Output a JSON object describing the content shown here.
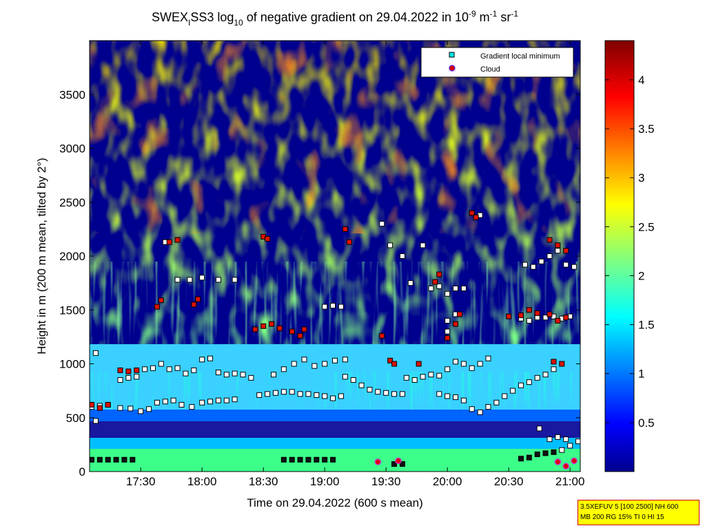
{
  "title": {
    "prefix": "SWEX",
    "sub1": "I",
    "mid": "SS3 log",
    "sub2": "10",
    "rest": " of negative gradient on 29.04.2022 in 10",
    "sup1": "-9",
    "unit1": " m",
    "sup2": "-1",
    "unit2": " sr",
    "sup3": "-1"
  },
  "xlabel": "Time on 29.04.2022 (600 s mean)",
  "ylabel": "Height in m (200 m mean, tilted by 2°)",
  "legend": {
    "items": [
      {
        "label": "Gradient local minimum",
        "color": "#00e5e5",
        "edge": "#000000"
      },
      {
        "label": "Cloud",
        "color": "#dd0000",
        "edge": "#6633cc"
      }
    ]
  },
  "info_box": {
    "line1": "3.5XEFUV 5 [100 2500] NH 600",
    "line2": "MB 200 RG 15% TI 0 HI 15"
  },
  "colorbar": {
    "ticks": [
      "0.5",
      "1",
      "1.5",
      "2",
      "2.5",
      "3",
      "3.5",
      "4"
    ],
    "range": [
      0,
      4.4
    ],
    "colormap": "jet"
  },
  "chart_data": {
    "type": "heatmap",
    "x_axis": {
      "range_minutes": [
        1025,
        1265
      ],
      "tick_labels": [
        "17:30",
        "18:00",
        "18:30",
        "19:00",
        "19:30",
        "20:00",
        "20:30",
        "21:00"
      ],
      "tick_minutes": [
        1050,
        1080,
        1110,
        1140,
        1170,
        1200,
        1230,
        1260
      ]
    },
    "y_axis": {
      "range": [
        0,
        4000
      ],
      "tick_labels": [
        "0",
        "500",
        "1000",
        "1500",
        "2000",
        "2500",
        "3000",
        "3500"
      ],
      "tick_values": [
        0,
        500,
        1000,
        1500,
        2000,
        2500,
        3000,
        3500
      ]
    },
    "layers": [
      {
        "height_range": [
          0,
          150
        ],
        "value": 2.0,
        "description": "near-surface green band"
      },
      {
        "height_range": [
          150,
          300
        ],
        "value": 0.3
      },
      {
        "height_range": [
          300,
          500
        ],
        "value": 1.0
      },
      {
        "height_range": [
          500,
          1000
        ],
        "value": 1.6
      },
      {
        "height_range": [
          1000,
          2600
        ],
        "value": 2.3,
        "pattern": "patchy"
      },
      {
        "height_range": [
          2600,
          4000
        ],
        "value": 2.8,
        "pattern": "patchy"
      }
    ],
    "series": [
      {
        "name": "Gradient local minimum",
        "points": [
          [
            1026,
            110
          ],
          [
            1030,
            110
          ],
          [
            1034,
            110
          ],
          [
            1038,
            110
          ],
          [
            1042,
            110
          ],
          [
            1046,
            110
          ],
          [
            1026,
            600
          ],
          [
            1030,
            610
          ],
          [
            1034,
            620
          ],
          [
            1040,
            590
          ],
          [
            1045,
            585
          ],
          [
            1050,
            560
          ],
          [
            1054,
            580
          ],
          [
            1058,
            640
          ],
          [
            1062,
            650
          ],
          [
            1066,
            660
          ],
          [
            1070,
            620
          ],
          [
            1075,
            600
          ],
          [
            1080,
            640
          ],
          [
            1084,
            650
          ],
          [
            1088,
            660
          ],
          [
            1092,
            660
          ],
          [
            1096,
            670
          ],
          [
            1040,
            850
          ],
          [
            1044,
            870
          ],
          [
            1048,
            880
          ],
          [
            1052,
            950
          ],
          [
            1056,
            960
          ],
          [
            1060,
            1000
          ],
          [
            1064,
            950
          ],
          [
            1068,
            960
          ],
          [
            1072,
            910
          ],
          [
            1076,
            940
          ],
          [
            1080,
            1040
          ],
          [
            1084,
            1050
          ],
          [
            1088,
            920
          ],
          [
            1092,
            900
          ],
          [
            1096,
            910
          ],
          [
            1100,
            900
          ],
          [
            1104,
            870
          ],
          [
            1108,
            710
          ],
          [
            1112,
            720
          ],
          [
            1116,
            730
          ],
          [
            1120,
            740
          ],
          [
            1124,
            740
          ],
          [
            1128,
            720
          ],
          [
            1132,
            720
          ],
          [
            1136,
            710
          ],
          [
            1140,
            700
          ],
          [
            1144,
            680
          ],
          [
            1148,
            700
          ],
          [
            1115,
            900
          ],
          [
            1120,
            950
          ],
          [
            1125,
            1000
          ],
          [
            1130,
            1040
          ],
          [
            1135,
            980
          ],
          [
            1140,
            1000
          ],
          [
            1145,
            1030
          ],
          [
            1150,
            1040
          ],
          [
            1150,
            880
          ],
          [
            1154,
            850
          ],
          [
            1158,
            800
          ],
          [
            1162,
            760
          ],
          [
            1166,
            740
          ],
          [
            1170,
            730
          ],
          [
            1174,
            720
          ],
          [
            1178,
            720
          ],
          [
            1120,
            110
          ],
          [
            1124,
            110
          ],
          [
            1128,
            110
          ],
          [
            1132,
            110
          ],
          [
            1136,
            110
          ],
          [
            1140,
            110
          ],
          [
            1144,
            110
          ],
          [
            1174,
            70
          ],
          [
            1178,
            70
          ],
          [
            1180,
            870
          ],
          [
            1184,
            850
          ],
          [
            1188,
            880
          ],
          [
            1192,
            900
          ],
          [
            1196,
            890
          ],
          [
            1200,
            950
          ],
          [
            1204,
            1020
          ],
          [
            1208,
            1000
          ],
          [
            1212,
            960
          ],
          [
            1216,
            1000
          ],
          [
            1220,
            1050
          ],
          [
            1196,
            720
          ],
          [
            1200,
            700
          ],
          [
            1204,
            690
          ],
          [
            1208,
            660
          ],
          [
            1212,
            580
          ],
          [
            1216,
            550
          ],
          [
            1220,
            600
          ],
          [
            1224,
            640
          ],
          [
            1228,
            700
          ],
          [
            1232,
            750
          ],
          [
            1236,
            800
          ],
          [
            1240,
            830
          ],
          [
            1244,
            870
          ],
          [
            1248,
            900
          ],
          [
            1252,
            950
          ],
          [
            1236,
            120
          ],
          [
            1240,
            130
          ],
          [
            1244,
            160
          ],
          [
            1248,
            170
          ],
          [
            1252,
            180
          ],
          [
            1256,
            200
          ],
          [
            1260,
            240
          ],
          [
            1264,
            280
          ],
          [
            1245,
            400
          ],
          [
            1250,
            300
          ],
          [
            1254,
            320
          ],
          [
            1258,
            300
          ],
          [
            1140,
            1530
          ],
          [
            1144,
            1540
          ],
          [
            1148,
            1530
          ],
          [
            1168,
            2300
          ],
          [
            1172,
            2100
          ],
          [
            1178,
            2000
          ],
          [
            1182,
            1750
          ],
          [
            1188,
            2100
          ],
          [
            1192,
            1700
          ],
          [
            1196,
            1720
          ],
          [
            1200,
            1650
          ],
          [
            1204,
            1700
          ],
          [
            1208,
            1700
          ],
          [
            1212,
            2400
          ],
          [
            1216,
            2380
          ],
          [
            1062,
            2130
          ],
          [
            1068,
            1780
          ],
          [
            1074,
            1780
          ],
          [
            1080,
            1800
          ],
          [
            1088,
            1780
          ],
          [
            1096,
            1780
          ],
          [
            1028,
            1100
          ],
          [
            1028,
            470
          ],
          [
            1200,
            1300
          ],
          [
            1200,
            1400
          ],
          [
            1204,
            1460
          ],
          [
            1238,
            1920
          ],
          [
            1242,
            1900
          ],
          [
            1246,
            1950
          ],
          [
            1250,
            2000
          ],
          [
            1254,
            2050
          ],
          [
            1258,
            1920
          ],
          [
            1262,
            1900
          ],
          [
            1236,
            1420
          ],
          [
            1240,
            1400
          ],
          [
            1244,
            1430
          ],
          [
            1248,
            1430
          ],
          [
            1252,
            1440
          ],
          [
            1256,
            1420
          ],
          [
            1260,
            1440
          ]
        ]
      },
      {
        "name": "Cloud",
        "points": [
          [
            1026,
            620
          ],
          [
            1030,
            590
          ],
          [
            1034,
            620
          ],
          [
            1040,
            940
          ],
          [
            1044,
            930
          ],
          [
            1048,
            940
          ],
          [
            1058,
            1530
          ],
          [
            1060,
            1590
          ],
          [
            1064,
            2130
          ],
          [
            1068,
            2150
          ],
          [
            1076,
            1550
          ],
          [
            1078,
            1600
          ],
          [
            1106,
            1320
          ],
          [
            1110,
            1350
          ],
          [
            1114,
            1370
          ],
          [
            1118,
            1330
          ],
          [
            1110,
            2180
          ],
          [
            1112,
            2160
          ],
          [
            1124,
            1300
          ],
          [
            1128,
            1260
          ],
          [
            1130,
            1320
          ],
          [
            1150,
            2250
          ],
          [
            1152,
            2130
          ],
          [
            1168,
            1260
          ],
          [
            1172,
            1030
          ],
          [
            1174,
            1000
          ],
          [
            1186,
            1000
          ],
          [
            1194,
            1760
          ],
          [
            1196,
            1830
          ],
          [
            1200,
            1240
          ],
          [
            1204,
            1370
          ],
          [
            1206,
            1460
          ],
          [
            1212,
            2400
          ],
          [
            1214,
            2360
          ],
          [
            1230,
            1440
          ],
          [
            1236,
            1450
          ],
          [
            1240,
            1500
          ],
          [
            1244,
            1470
          ],
          [
            1250,
            1460
          ],
          [
            1254,
            1400
          ],
          [
            1258,
            1430
          ],
          [
            1252,
            1020
          ],
          [
            1256,
            1000
          ],
          [
            1250,
            2150
          ],
          [
            1254,
            2100
          ],
          [
            1258,
            2050
          ],
          [
            1166,
            90
          ],
          [
            1176,
            100
          ],
          [
            1254,
            90
          ],
          [
            1258,
            50
          ],
          [
            1262,
            100
          ]
        ]
      }
    ]
  }
}
